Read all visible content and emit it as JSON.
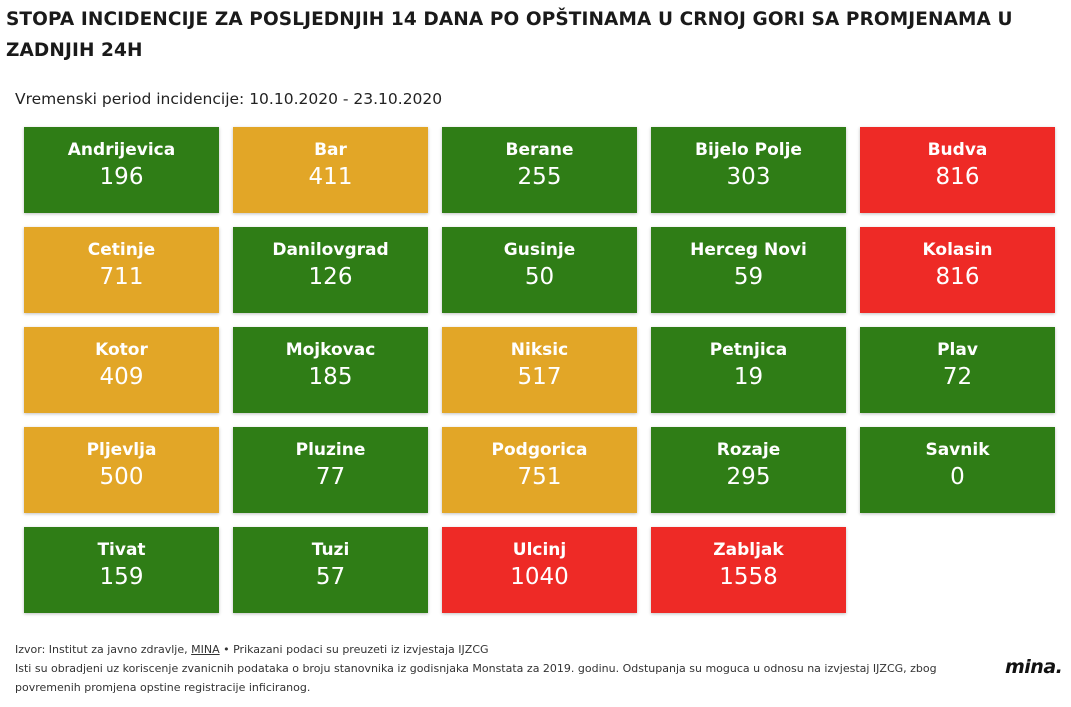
{
  "header": {
    "title": "STOPA INCIDENCIJE ZA POSLJEDNJIH 14 DANA PO OPŠTINAMA U CRNOJ GORI SA PROMJENAMA U ZADNJIH 24H",
    "period": "Vremenski period incidencije: 10.10.2020 - 23.10.2020"
  },
  "colors": {
    "green": "#2f7d16",
    "orange": "#e2a627",
    "red": "#ee2a26"
  },
  "chart_data": {
    "type": "table",
    "title": "STOPA INCIDENCIJE ZA POSLJEDNJIH 14 DANA PO OPŠTINAMA U CRNOJ GORI SA PROMJENAMA U ZADNJIH 24H",
    "subtitle": "Vremenski period incidencije: 10.10.2020 - 23.10.2020",
    "columns": 5,
    "cells": [
      {
        "name": "Andrijevica",
        "value": 196,
        "level": "green"
      },
      {
        "name": "Bar",
        "value": 411,
        "level": "orange"
      },
      {
        "name": "Berane",
        "value": 255,
        "level": "green"
      },
      {
        "name": "Bijelo Polje",
        "value": 303,
        "level": "green"
      },
      {
        "name": "Budva",
        "value": 816,
        "level": "red"
      },
      {
        "name": "Cetinje",
        "value": 711,
        "level": "orange"
      },
      {
        "name": "Danilovgrad",
        "value": 126,
        "level": "green"
      },
      {
        "name": "Gusinje",
        "value": 50,
        "level": "green"
      },
      {
        "name": "Herceg Novi",
        "value": 59,
        "level": "green"
      },
      {
        "name": "Kolasin",
        "value": 816,
        "level": "red"
      },
      {
        "name": "Kotor",
        "value": 409,
        "level": "orange"
      },
      {
        "name": "Mojkovac",
        "value": 185,
        "level": "green"
      },
      {
        "name": "Niksic",
        "value": 517,
        "level": "orange"
      },
      {
        "name": "Petnjica",
        "value": 19,
        "level": "green"
      },
      {
        "name": "Plav",
        "value": 72,
        "level": "green"
      },
      {
        "name": "Pljevlja",
        "value": 500,
        "level": "orange"
      },
      {
        "name": "Pluzine",
        "value": 77,
        "level": "green"
      },
      {
        "name": "Podgorica",
        "value": 751,
        "level": "orange"
      },
      {
        "name": "Rozaje",
        "value": 295,
        "level": "green"
      },
      {
        "name": "Savnik",
        "value": 0,
        "level": "green"
      },
      {
        "name": "Tivat",
        "value": 159,
        "level": "green"
      },
      {
        "name": "Tuzi",
        "value": 57,
        "level": "green"
      },
      {
        "name": "Ulcinj",
        "value": 1040,
        "level": "red"
      },
      {
        "name": "Zabljak",
        "value": 1558,
        "level": "red"
      }
    ]
  },
  "footer": {
    "source_prefix": "Izvor: Institut za javno zdravlje, ",
    "source_link": "MINA",
    "source_suffix": " • Prikazani podaci su preuzeti iz izvjestaja IJZCG",
    "note": "Isti su obradjeni uz koriscenje zvanicnih podataka o broju stanovnika iz godisnjaka Monstata za 2019. godinu. Odstupanja su moguca u odnosu na izvjestaj IJZCG, zbog povremenih promjena opstine registracije inficiranog.",
    "logo": "mina."
  }
}
